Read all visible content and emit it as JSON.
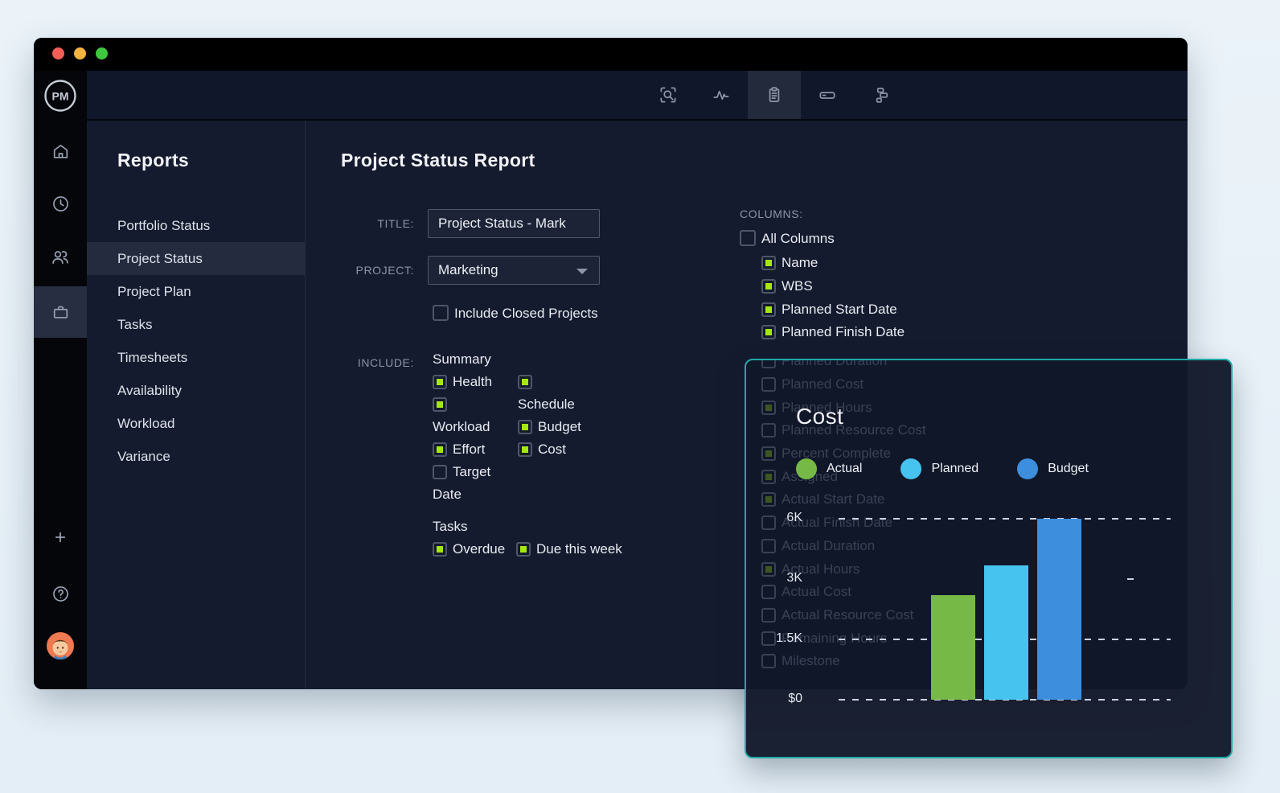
{
  "colors": {
    "accent_green": "#a6e711",
    "card_border_teal": "#1fa9a6",
    "traffic_close": "#f45f57",
    "traffic_minimize": "#f4b43d",
    "traffic_zoom": "#3ec83f"
  },
  "titlebar": {
    "buttons": [
      "close",
      "minimize",
      "zoom"
    ]
  },
  "brand": {
    "logo_text": "PM"
  },
  "toolbar": {
    "icons": [
      "zoom-search-icon",
      "activity-icon",
      "report-clipboard-icon",
      "card-icon",
      "workflow-icon"
    ],
    "active_icon": "report-clipboard-icon"
  },
  "rail": {
    "icons": [
      "home-icon",
      "clock-icon",
      "team-icon",
      "projects-icon",
      "add-icon",
      "help-icon",
      "user-avatar"
    ],
    "active_icon": "projects-icon"
  },
  "reports_panel": {
    "title": "Reports",
    "items": [
      {
        "label": "Portfolio Status"
      },
      {
        "label": "Project Status",
        "selected": true
      },
      {
        "label": "Project Plan"
      },
      {
        "label": "Tasks"
      },
      {
        "label": "Timesheets"
      },
      {
        "label": "Availability"
      },
      {
        "label": "Workload"
      },
      {
        "label": "Variance"
      }
    ]
  },
  "form": {
    "heading": "Project Status Report",
    "title_label": "TITLE:",
    "title_value": "Project Status - Mark",
    "project_label": "PROJECT:",
    "project_value": "Marketing",
    "include_closed": {
      "label": "Include Closed Projects",
      "checked": false
    },
    "include_label": "INCLUDE:",
    "include": {
      "summary_heading": "Summary",
      "summary_col1": [
        {
          "label": "Health",
          "checked": true
        },
        {
          "label": "Workload",
          "checked": true
        },
        {
          "label": "Effort",
          "checked": true
        },
        {
          "label": "Target Date",
          "checked": false
        }
      ],
      "summary_col2": [
        {
          "label": "Schedule",
          "checked": true
        },
        {
          "label": "Budget",
          "checked": true
        },
        {
          "label": "Cost",
          "checked": true
        }
      ],
      "tasks_heading": "Tasks",
      "tasks_items": [
        {
          "label": "Overdue",
          "checked": true
        },
        {
          "label": "Due this week",
          "checked": true
        }
      ]
    }
  },
  "columns": {
    "label": "COLUMNS:",
    "all_columns": {
      "label": "All Columns",
      "checked": false
    },
    "visible_items": [
      {
        "label": "Name",
        "checked": true
      },
      {
        "label": "WBS",
        "checked": true
      },
      {
        "label": "Planned Start Date",
        "checked": true
      },
      {
        "label": "Planned Finish Date",
        "checked": true
      }
    ],
    "hidden_items": [
      {
        "label": "Planned Duration",
        "checked": false
      },
      {
        "label": "Planned Cost",
        "checked": false
      },
      {
        "label": "Planned Hours",
        "checked": true
      },
      {
        "label": "Planned Resource Cost",
        "checked": false
      },
      {
        "label": "Percent Complete",
        "checked": true
      },
      {
        "label": "Assigned",
        "checked": true
      },
      {
        "label": "Actual Start Date",
        "checked": true
      },
      {
        "label": "Actual Finish Date",
        "checked": false
      },
      {
        "label": "Actual Duration",
        "checked": false
      },
      {
        "label": "Actual Hours",
        "checked": true
      },
      {
        "label": "Actual Cost",
        "checked": false
      },
      {
        "label": "Actual Resource Cost",
        "checked": false
      },
      {
        "label": "Remaining Hours",
        "checked": false
      },
      {
        "label": "Milestone",
        "checked": false
      }
    ]
  },
  "chart_card": {
    "title": "Cost",
    "legend": [
      {
        "label": "Actual",
        "color": "#76b947"
      },
      {
        "label": "Planned",
        "color": "#47c3f0"
      },
      {
        "label": "Budget",
        "color": "#3e8ede"
      }
    ],
    "chart_data": {
      "type": "bar",
      "title": "Cost",
      "categories": [
        "Actual",
        "Planned",
        "Budget"
      ],
      "values": [
        2500,
        3500,
        6000
      ],
      "yticks": [
        {
          "label": "6K",
          "value": 6000,
          "line": "full"
        },
        {
          "label": "3K",
          "value": 3000,
          "line": "stub"
        },
        {
          "label": "1.5K",
          "value": 1500,
          "line": "full"
        },
        {
          "label": "$0",
          "value": 0,
          "line": "full"
        }
      ],
      "xlabel": "",
      "ylabel": "",
      "legend_position": "top",
      "grid": "dashed-horizontal"
    }
  }
}
